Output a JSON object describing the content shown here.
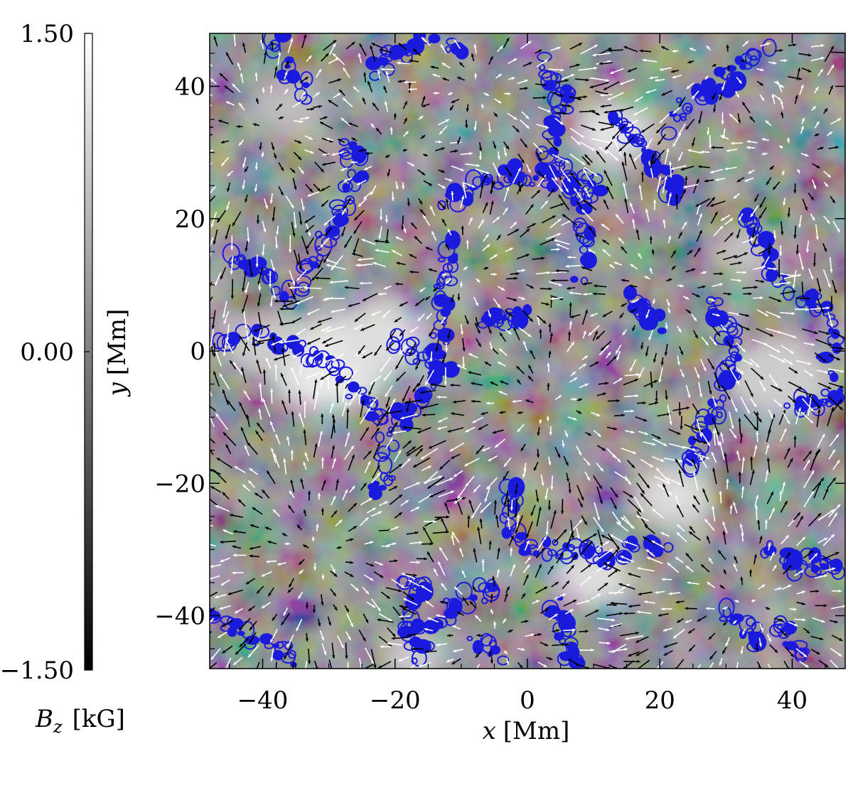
{
  "chart_data": {
    "type": "heatmap",
    "title": "",
    "xlabel_symbol": "x",
    "xlabel_unit": "[Mm]",
    "ylabel_symbol": "y",
    "ylabel_unit": "[Mm]",
    "xlim": [
      -48,
      48
    ],
    "ylim": [
      -48,
      48
    ],
    "x_ticks": [
      -40,
      -20,
      0,
      20,
      40
    ],
    "y_ticks": [
      -40,
      -20,
      0,
      20,
      40
    ],
    "x_tick_labels": [
      "−40",
      "−20",
      "0",
      "20",
      "40"
    ],
    "y_tick_labels": [
      "−40",
      "−20",
      "0",
      "20",
      "40"
    ],
    "grid": false,
    "colorbar": {
      "label_symbol": "B",
      "label_subscript": "z",
      "label_unit": "[kG]",
      "range": [
        -1.5,
        1.5
      ],
      "ticks": [
        -1.5,
        0.0,
        1.5
      ],
      "tick_labels": [
        "−1.50",
        "0.00",
        "1.50"
      ],
      "colormap": "grayscale"
    },
    "overlays": [
      {
        "kind": "contour",
        "color": "#1a1adc",
        "description_visible": false
      },
      {
        "kind": "vector-field",
        "colors": [
          "#000000",
          "#ffffff"
        ]
      }
    ],
    "bright_patches": [
      {
        "x": -30,
        "y": -2,
        "intensity": 0.95,
        "radius": 9
      },
      {
        "x": -22,
        "y": 2,
        "intensity": 0.85,
        "radius": 7
      },
      {
        "x": -40,
        "y": 1,
        "intensity": 0.7,
        "radius": 6
      },
      {
        "x": 13,
        "y": 33,
        "intensity": 0.9,
        "radius": 6
      },
      {
        "x": 22,
        "y": -22,
        "intensity": 0.85,
        "radius": 6
      },
      {
        "x": 10,
        "y": -34,
        "intensity": 0.85,
        "radius": 6
      },
      {
        "x": 38,
        "y": -4,
        "intensity": 0.7,
        "radius": 8
      },
      {
        "x": -17,
        "y": -46,
        "intensity": 0.7,
        "radius": 5
      },
      {
        "x": -36,
        "y": 37,
        "intensity": 0.55,
        "radius": 6
      },
      {
        "x": 33,
        "y": 15,
        "intensity": 0.6,
        "radius": 5
      }
    ],
    "contour_lanes": [
      [
        [
          -47,
          2
        ],
        [
          -40,
          2
        ],
        [
          -34,
          0
        ],
        [
          -30,
          -2
        ],
        [
          -26,
          -6
        ],
        [
          -22,
          -10
        ],
        [
          -21,
          -18
        ],
        [
          -24,
          -22
        ]
      ],
      [
        [
          -19,
          -11
        ],
        [
          -17,
          -8
        ],
        [
          -14,
          -3
        ],
        [
          -13,
          2
        ],
        [
          -13,
          8
        ],
        [
          -12,
          12
        ],
        [
          -11,
          18
        ]
      ],
      [
        [
          -36,
          8
        ],
        [
          -33,
          13
        ],
        [
          -30,
          17
        ],
        [
          -28,
          22
        ],
        [
          -26,
          27
        ],
        [
          -27,
          33
        ]
      ],
      [
        [
          -48,
          -40
        ],
        [
          -44,
          -42
        ],
        [
          -39,
          -44
        ],
        [
          -34,
          -47
        ]
      ],
      [
        [
          -38,
          47
        ],
        [
          -36,
          42
        ],
        [
          -33,
          38
        ]
      ],
      [
        [
          -24,
          42
        ],
        [
          -20,
          45
        ],
        [
          -16,
          47
        ],
        [
          -10,
          45
        ]
      ],
      [
        [
          -12,
          23
        ],
        [
          -7,
          25
        ],
        [
          -2,
          27
        ],
        [
          3,
          26
        ],
        [
          8,
          26
        ],
        [
          11,
          24
        ]
      ],
      [
        [
          3,
          44
        ],
        [
          5,
          40
        ],
        [
          5,
          37
        ],
        [
          3,
          30
        ],
        [
          7,
          24
        ],
        [
          9,
          18
        ],
        [
          8,
          10
        ]
      ],
      [
        [
          13,
          36
        ],
        [
          16,
          32
        ],
        [
          19,
          30
        ],
        [
          21,
          25
        ],
        [
          23,
          24
        ]
      ],
      [
        [
          21,
          34
        ],
        [
          25,
          38
        ],
        [
          29,
          40
        ],
        [
          32,
          43
        ],
        [
          36,
          46
        ]
      ],
      [
        [
          -2,
          -20
        ],
        [
          -3,
          -25
        ],
        [
          -1,
          -30
        ],
        [
          4,
          -30
        ],
        [
          8,
          -30
        ],
        [
          12,
          -32
        ],
        [
          16,
          -30
        ],
        [
          22,
          -29
        ]
      ],
      [
        [
          -18,
          -34
        ],
        [
          -16,
          -37
        ],
        [
          -18,
          -41
        ],
        [
          -18,
          -46
        ],
        [
          -13,
          -40
        ],
        [
          -8,
          -37
        ],
        [
          -5,
          -35
        ]
      ],
      [
        [
          4,
          -38
        ],
        [
          6,
          -42
        ],
        [
          5,
          -46
        ],
        [
          8,
          -46
        ]
      ],
      [
        [
          24,
          -18
        ],
        [
          26,
          -14
        ],
        [
          28,
          -10
        ],
        [
          30,
          -5
        ],
        [
          31,
          -1
        ],
        [
          30,
          4
        ],
        [
          28,
          8
        ]
      ],
      [
        [
          37,
          -30
        ],
        [
          40,
          -33
        ],
        [
          44,
          -32
        ],
        [
          47,
          -34
        ]
      ],
      [
        [
          38,
          -41
        ],
        [
          40,
          -44
        ],
        [
          43,
          -47
        ]
      ],
      [
        [
          40,
          -8
        ],
        [
          44,
          -8
        ],
        [
          47,
          -6
        ]
      ],
      [
        [
          40,
          8
        ],
        [
          44,
          7
        ],
        [
          46,
          2
        ],
        [
          45,
          -4
        ]
      ],
      [
        [
          33,
          21
        ],
        [
          35,
          18
        ],
        [
          36,
          13
        ],
        [
          39,
          10
        ]
      ],
      [
        [
          -20,
          2
        ],
        [
          -16,
          -1
        ],
        [
          -12,
          -2
        ]
      ],
      [
        [
          -6,
          4
        ],
        [
          -3,
          5
        ],
        [
          0,
          6
        ]
      ],
      [
        [
          16,
          8
        ],
        [
          18,
          6
        ],
        [
          20,
          4
        ]
      ],
      [
        [
          -8,
          -44
        ],
        [
          -4,
          -46
        ]
      ],
      [
        [
          30,
          -40
        ],
        [
          33,
          -42
        ],
        [
          35,
          -44
        ]
      ],
      [
        [
          -44,
          14
        ],
        [
          -41,
          12
        ],
        [
          -38,
          10
        ]
      ]
    ],
    "outflow_centers": [
      {
        "x": -40,
        "y": 34
      },
      {
        "x": -20,
        "y": 30
      },
      {
        "x": -10,
        "y": 12
      },
      {
        "x": 3,
        "y": -8
      },
      {
        "x": 20,
        "y": 10
      },
      {
        "x": -32,
        "y": -30
      },
      {
        "x": -5,
        "y": -43
      },
      {
        "x": 33,
        "y": -38
      },
      {
        "x": 40,
        "y": 30
      },
      {
        "x": 30,
        "y": 44
      },
      {
        "x": -8,
        "y": 40
      }
    ]
  }
}
